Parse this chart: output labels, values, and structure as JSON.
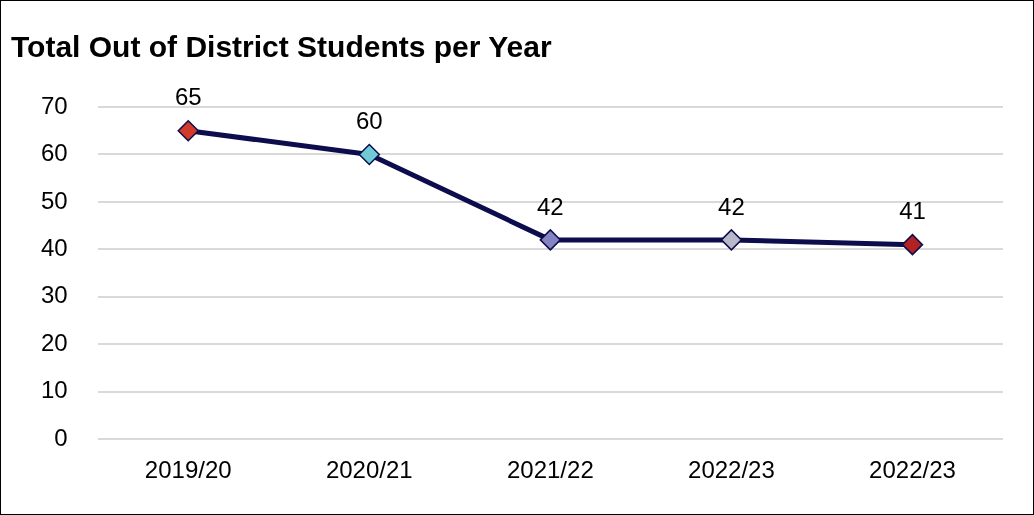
{
  "chart_data": {
    "type": "line",
    "title": "Total Out of District Students per Year",
    "categories": [
      "2019/20",
      "2020/21",
      "2021/22",
      "2022/23",
      "2022/23"
    ],
    "series": [
      {
        "color": "#0d0d4d",
        "colors": [
          "#d23a2c",
          "#6fcad8",
          "#8484c4",
          "#b8b8c8",
          "#b22222"
        ],
        "values": [
          65,
          60,
          42,
          42,
          41
        ]
      }
    ],
    "ylim": [
      0,
      70
    ],
    "yticks": [
      0,
      10,
      20,
      30,
      40,
      50,
      60,
      70
    ],
    "grid": "y",
    "marker": "diamond",
    "line_style": "solid",
    "data_labels": true,
    "legend": false
  }
}
